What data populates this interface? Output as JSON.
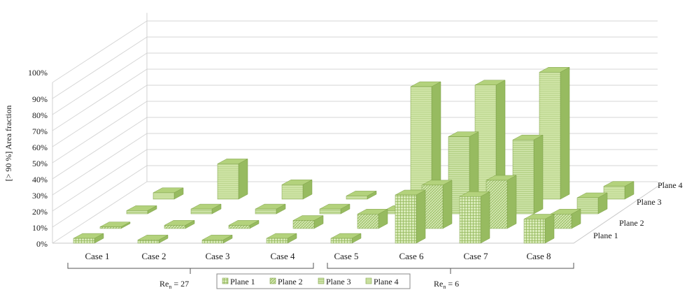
{
  "chart_data": {
    "type": "bar",
    "subtype": "3d-column",
    "ylabel": "[> 90 %] Area fraction",
    "ylim": [
      0,
      100
    ],
    "yticks": [
      "0%",
      "10%",
      "20%",
      "30%",
      "40%",
      "50%",
      "60%",
      "70%",
      "80%",
      "90%",
      "100%"
    ],
    "categories": [
      "Case 1",
      "Case 2",
      "Case 3",
      "Case 4",
      "Case 5",
      "Case 6",
      "Case 7",
      "Case 8"
    ],
    "series": [
      {
        "name": "Plane 1",
        "values": [
          3,
          2,
          2,
          3,
          3,
          30,
          29,
          15
        ]
      },
      {
        "name": "Plane 2",
        "values": [
          1,
          2,
          2,
          5,
          9,
          27,
          30,
          9
        ]
      },
      {
        "name": "Plane 3",
        "values": [
          2,
          3,
          3,
          3,
          2,
          48,
          46,
          10
        ]
      },
      {
        "name": "Plane 4",
        "values": [
          4,
          22,
          9,
          2,
          70,
          71,
          79,
          8
        ]
      }
    ],
    "depth_labels": [
      "Plane 1",
      "Plane 2",
      "Plane 3",
      "Plane 4"
    ],
    "legend": {
      "position": "bottom",
      "entries": [
        "Plane 1",
        "Plane 2",
        "Plane 3",
        "Plane 4"
      ]
    },
    "groups": [
      {
        "label": "Re",
        "subscript": "n",
        "value": "= 27",
        "cases": [
          "Case 1",
          "Case 2",
          "Case 3",
          "Case 4"
        ]
      },
      {
        "label": "Re",
        "subscript": "n",
        "value": "= 6",
        "cases": [
          "Case 5",
          "Case 6",
          "Case 7",
          "Case 8"
        ]
      }
    ],
    "grid": true,
    "colors": {
      "fill": "#c5df9c",
      "fill_light": "#d9ebb9",
      "top": "#b3d27c",
      "side": "#97bb60",
      "stroke": "#7da046",
      "grid": "#d6d6d6"
    }
  }
}
